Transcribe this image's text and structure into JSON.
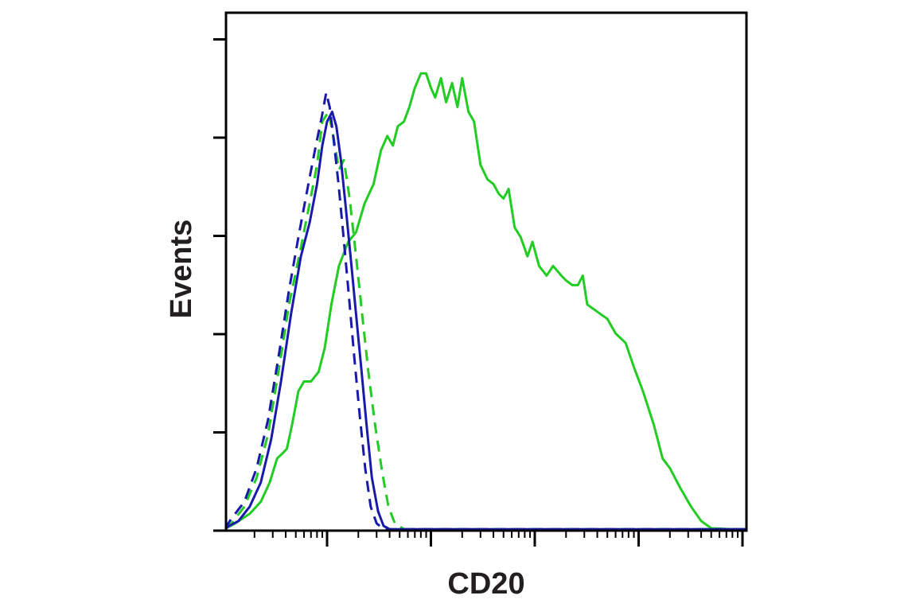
{
  "chart_data": {
    "type": "line",
    "xlabel": "CD20",
    "ylabel": "Events",
    "x_scale": "log",
    "xlim": [
      0.3,
      2000000
    ],
    "ylim": [
      0,
      100
    ],
    "grid": false,
    "legend": "none",
    "tick_labels_shown": false,
    "series": [
      {
        "color": "#22cc22",
        "dash": "solid",
        "points": [
          [
            0.3,
            0.3
          ],
          [
            0.5,
            0.3
          ],
          [
            0.9,
            0.5
          ],
          [
            1.3,
            1.5
          ],
          [
            1.8,
            3.5
          ],
          [
            2.3,
            6
          ],
          [
            2.8,
            10
          ],
          [
            3.3,
            15
          ],
          [
            3.7,
            16
          ],
          [
            4.1,
            17
          ],
          [
            4.6,
            22
          ],
          [
            5.3,
            29
          ],
          [
            6,
            31
          ],
          [
            7,
            31
          ],
          [
            8.3,
            33
          ],
          [
            9.5,
            38
          ],
          [
            11,
            47
          ],
          [
            13,
            55
          ],
          [
            16,
            60
          ],
          [
            19,
            62
          ],
          [
            23,
            68
          ],
          [
            28,
            72
          ],
          [
            33,
            79
          ],
          [
            38,
            82
          ],
          [
            43,
            80
          ],
          [
            48,
            84
          ],
          [
            55,
            85
          ],
          [
            62,
            88
          ],
          [
            70,
            92
          ],
          [
            80,
            95
          ],
          [
            90,
            95
          ],
          [
            100,
            92
          ],
          [
            110,
            90
          ],
          [
            125,
            94
          ],
          [
            140,
            89
          ],
          [
            160,
            93
          ],
          [
            180,
            88
          ],
          [
            200,
            94
          ],
          [
            230,
            87
          ],
          [
            260,
            85
          ],
          [
            300,
            76
          ],
          [
            350,
            73
          ],
          [
            400,
            72
          ],
          [
            450,
            70
          ],
          [
            500,
            69
          ],
          [
            560,
            71
          ],
          [
            640,
            63
          ],
          [
            730,
            61
          ],
          [
            850,
            57
          ],
          [
            950,
            60
          ],
          [
            1100,
            55
          ],
          [
            1300,
            53
          ],
          [
            1500,
            55
          ],
          [
            1800,
            53
          ],
          [
            2000,
            52
          ],
          [
            2300,
            51
          ],
          [
            2600,
            51
          ],
          [
            2900,
            53
          ],
          [
            3200,
            47
          ],
          [
            3700,
            46
          ],
          [
            4300,
            45
          ],
          [
            5000,
            44
          ],
          [
            6000,
            41
          ],
          [
            7500,
            39
          ],
          [
            9000,
            34
          ],
          [
            11000,
            29
          ],
          [
            14000,
            22
          ],
          [
            17000,
            15
          ],
          [
            20000,
            13
          ],
          [
            25000,
            9
          ],
          [
            32000,
            5
          ],
          [
            40000,
            2
          ],
          [
            50000,
            0.5
          ],
          [
            80000,
            0.3
          ],
          [
            300000,
            0.3
          ],
          [
            1000000,
            0.3
          ],
          [
            2000000,
            0.3
          ]
        ]
      },
      {
        "color": "#22cc22",
        "dash": "dashed",
        "points": [
          [
            0.3,
            0.3
          ],
          [
            0.8,
            0.5
          ],
          [
            1.2,
            1.5
          ],
          [
            1.6,
            5
          ],
          [
            2.1,
            11
          ],
          [
            2.7,
            20
          ],
          [
            3.4,
            33
          ],
          [
            4.3,
            47
          ],
          [
            5.5,
            58
          ],
          [
            6.8,
            68
          ],
          [
            8,
            76
          ],
          [
            9,
            85
          ],
          [
            10.3,
            87
          ],
          [
            11.5,
            82
          ],
          [
            13,
            75
          ],
          [
            14.5,
            77
          ],
          [
            16.5,
            69
          ],
          [
            19,
            57
          ],
          [
            22,
            44
          ],
          [
            25,
            33
          ],
          [
            29,
            22
          ],
          [
            34,
            12
          ],
          [
            39,
            5
          ],
          [
            45,
            1.5
          ],
          [
            55,
            0.3
          ],
          [
            2000000,
            0.3
          ]
        ]
      },
      {
        "color": "#1a1aaa",
        "dash": "solid",
        "points": [
          [
            0.3,
            0.3
          ],
          [
            0.8,
            0.4
          ],
          [
            1.1,
            0.8
          ],
          [
            1.4,
            2
          ],
          [
            1.8,
            5
          ],
          [
            2.3,
            10
          ],
          [
            2.9,
            19
          ],
          [
            3.6,
            31
          ],
          [
            4.5,
            45
          ],
          [
            5.6,
            57
          ],
          [
            6.8,
            64
          ],
          [
            8,
            72
          ],
          [
            9,
            80
          ],
          [
            10,
            85
          ],
          [
            11.2,
            87
          ],
          [
            12.3,
            84
          ],
          [
            13.6,
            77
          ],
          [
            15,
            68
          ],
          [
            17,
            56
          ],
          [
            19,
            45
          ],
          [
            21.5,
            33
          ],
          [
            24,
            22
          ],
          [
            27,
            11
          ],
          [
            31,
            4
          ],
          [
            35,
            1
          ],
          [
            40,
            0.3
          ],
          [
            2000000,
            0.3
          ]
        ]
      },
      {
        "color": "#1a1aaa",
        "dash": "dashed",
        "points": [
          [
            0.3,
            0.3
          ],
          [
            0.6,
            0.3
          ],
          [
            0.9,
            0.8
          ],
          [
            1.2,
            2.5
          ],
          [
            1.6,
            6
          ],
          [
            2.1,
            13
          ],
          [
            2.7,
            23
          ],
          [
            3.4,
            36
          ],
          [
            4.3,
            50
          ],
          [
            5.4,
            62
          ],
          [
            6.6,
            72
          ],
          [
            7.8,
            80
          ],
          [
            8.9,
            86
          ],
          [
            9.8,
            91
          ],
          [
            10.6,
            88
          ],
          [
            11.6,
            81
          ],
          [
            12.9,
            72
          ],
          [
            14.4,
            61
          ],
          [
            16.2,
            49
          ],
          [
            18.3,
            36
          ],
          [
            20.6,
            24
          ],
          [
            23.3,
            13
          ],
          [
            26.3,
            5
          ],
          [
            30,
            1.5
          ],
          [
            35,
            0.3
          ],
          [
            2000000,
            0.3
          ]
        ]
      }
    ]
  }
}
